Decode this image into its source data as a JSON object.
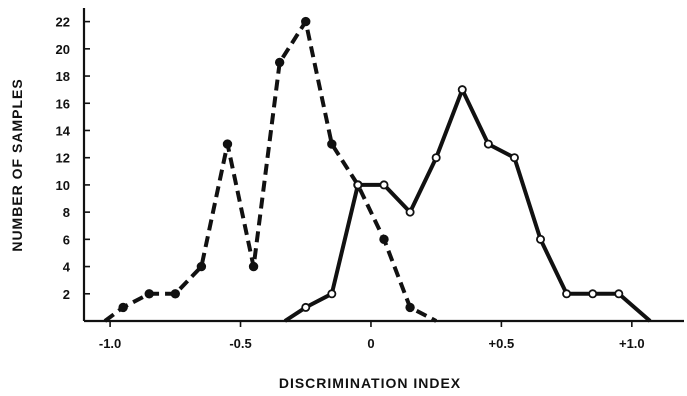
{
  "chart_data": {
    "type": "line",
    "title": "",
    "xlabel": "DISCRIMINATION  INDEX",
    "ylabel": "NUMBER OF SAMPLES",
    "xlim": [
      -1.1,
      1.2
    ],
    "ylim": [
      0,
      23
    ],
    "x_ticks": [
      -1.0,
      -0.5,
      0,
      0.5,
      1.0
    ],
    "x_tick_labels": [
      "-1.0",
      "-0.5",
      "0",
      "+0.5",
      "+1.0"
    ],
    "y_ticks": [
      2,
      4,
      6,
      8,
      10,
      12,
      14,
      16,
      18,
      20,
      22
    ],
    "y_tick_labels": [
      "2",
      "4",
      "6",
      "8",
      "10",
      "12",
      "14",
      "16",
      "18",
      "20",
      "22"
    ],
    "grid": false,
    "legend": "none",
    "series": [
      {
        "style": "dashed",
        "marker": "filled-circle",
        "color": "#111111",
        "points": [
          {
            "x": -1.02,
            "y": 0
          },
          {
            "x": -0.95,
            "y": 1
          },
          {
            "x": -0.85,
            "y": 2
          },
          {
            "x": -0.75,
            "y": 2
          },
          {
            "x": -0.65,
            "y": 4
          },
          {
            "x": -0.55,
            "y": 13
          },
          {
            "x": -0.45,
            "y": 4
          },
          {
            "x": -0.35,
            "y": 19
          },
          {
            "x": -0.25,
            "y": 22
          },
          {
            "x": -0.15,
            "y": 13
          },
          {
            "x": -0.05,
            "y": 10
          },
          {
            "x": 0.05,
            "y": 6
          },
          {
            "x": 0.15,
            "y": 1
          },
          {
            "x": 0.25,
            "y": 0
          }
        ],
        "marker_points": [
          1,
          2,
          3,
          4,
          5,
          6,
          7,
          8,
          9,
          10,
          11,
          12
        ]
      },
      {
        "style": "solid",
        "marker": "open-circle",
        "color": "#111111",
        "points": [
          {
            "x": -0.33,
            "y": 0
          },
          {
            "x": -0.25,
            "y": 1
          },
          {
            "x": -0.15,
            "y": 2
          },
          {
            "x": -0.05,
            "y": 10
          },
          {
            "x": 0.05,
            "y": 10
          },
          {
            "x": 0.15,
            "y": 8
          },
          {
            "x": 0.25,
            "y": 12
          },
          {
            "x": 0.35,
            "y": 17
          },
          {
            "x": 0.45,
            "y": 13
          },
          {
            "x": 0.55,
            "y": 12
          },
          {
            "x": 0.65,
            "y": 6
          },
          {
            "x": 0.75,
            "y": 2
          },
          {
            "x": 0.85,
            "y": 2
          },
          {
            "x": 0.95,
            "y": 2
          },
          {
            "x": 1.07,
            "y": 0
          }
        ],
        "marker_points": [
          1,
          2,
          3,
          4,
          5,
          6,
          7,
          8,
          9,
          10,
          11,
          12,
          13
        ]
      }
    ]
  }
}
